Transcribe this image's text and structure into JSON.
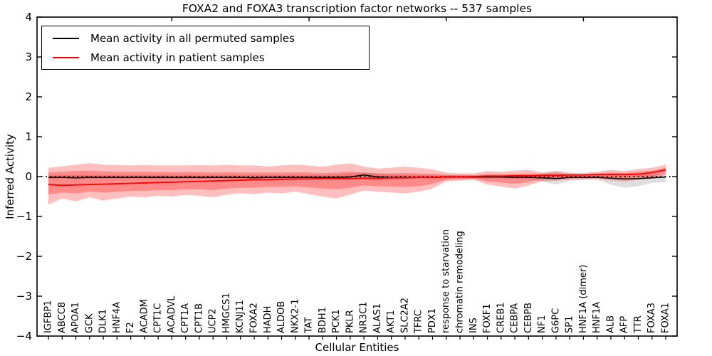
{
  "chart_data": {
    "type": "line",
    "title": "FOXA2 and FOXA3 transcription factor networks -- 537 samples",
    "xlabel": "Cellular Entities",
    "ylabel": "Inferred Activity",
    "ylim": [
      -4,
      4
    ],
    "yticks": [
      4,
      3,
      2,
      1,
      0,
      -1,
      -2,
      -3,
      -4
    ],
    "grid": false,
    "legend_position": "upper left",
    "zero_reference_line": {
      "y": 0,
      "style": "dotted",
      "color": "#000000"
    },
    "categories": [
      "IGFBP1",
      "ABCC8",
      "APOA1",
      "GCK",
      "DLK1",
      "HNF4A",
      "F2",
      "ACADM",
      "CPT1C",
      "ACADVL",
      "CPT1A",
      "CPT1B",
      "UCP2",
      "HMGCS1",
      "KCNJ11",
      "FOXA2",
      "HADH",
      "ALDOB",
      "NKX2-1",
      "TAT",
      "BDH1",
      "PCK1",
      "PKLR",
      "NR3C1",
      "ALAS1",
      "AKT1",
      "SLC2A2",
      "TFRC",
      "PDX1",
      "response to starvation",
      "chromatin remodeling",
      "INS",
      "FOXF1",
      "CREB1",
      "CEBPA",
      "CEBPB",
      "NF1",
      "G6PC",
      "SP1",
      "HNF1A (dimer)",
      "HNF1A",
      "ALB",
      "AFP",
      "TTR",
      "FOXA3",
      "FOXA1"
    ],
    "series": [
      {
        "name": "Mean activity in all permuted samples",
        "color": "#000000",
        "values": [
          -0.02,
          -0.02,
          -0.03,
          -0.02,
          -0.02,
          -0.02,
          -0.02,
          -0.02,
          -0.02,
          -0.02,
          -0.02,
          -0.02,
          -0.02,
          -0.02,
          -0.02,
          -0.03,
          -0.02,
          -0.02,
          -0.02,
          -0.02,
          -0.02,
          -0.02,
          -0.01,
          0.04,
          -0.01,
          -0.02,
          -0.02,
          -0.02,
          -0.02,
          -0.01,
          -0.01,
          -0.01,
          -0.01,
          -0.01,
          -0.02,
          -0.02,
          -0.03,
          -0.05,
          -0.02,
          -0.02,
          -0.02,
          -0.04,
          -0.06,
          -0.05,
          -0.03,
          -0.01
        ]
      },
      {
        "name": "Mean activity in patient samples",
        "color": "#ff0000",
        "values": [
          -0.2,
          -0.22,
          -0.21,
          -0.2,
          -0.19,
          -0.18,
          -0.17,
          -0.16,
          -0.15,
          -0.14,
          -0.13,
          -0.12,
          -0.11,
          -0.1,
          -0.09,
          -0.08,
          -0.08,
          -0.07,
          -0.06,
          -0.06,
          -0.05,
          -0.05,
          -0.05,
          -0.04,
          -0.04,
          -0.03,
          -0.03,
          -0.02,
          -0.02,
          -0.01,
          -0.01,
          0.0,
          0.01,
          0.01,
          0.02,
          0.02,
          0.03,
          0.03,
          0.04,
          0.04,
          0.05,
          0.05,
          0.05,
          0.06,
          0.1,
          0.17
        ]
      }
    ],
    "bands": [
      {
        "name": "permuted-samples-range",
        "color": "#000000",
        "opacity": 0.13,
        "low": [
          -0.06,
          -0.06,
          -0.07,
          -0.06,
          -0.06,
          -0.06,
          -0.06,
          -0.06,
          -0.06,
          -0.06,
          -0.06,
          -0.06,
          -0.06,
          -0.06,
          -0.06,
          -0.07,
          -0.06,
          -0.06,
          -0.06,
          -0.06,
          -0.06,
          -0.07,
          -0.08,
          -0.08,
          -0.1,
          -0.08,
          -0.06,
          -0.06,
          -0.06,
          -0.05,
          -0.04,
          -0.04,
          -0.05,
          -0.05,
          -0.06,
          -0.06,
          -0.12,
          -0.2,
          -0.1,
          -0.07,
          -0.08,
          -0.2,
          -0.28,
          -0.24,
          -0.16,
          -0.14
        ],
        "high": [
          0.04,
          0.04,
          0.04,
          0.04,
          0.04,
          0.04,
          0.04,
          0.04,
          0.04,
          0.04,
          0.04,
          0.04,
          0.04,
          0.04,
          0.04,
          0.04,
          0.04,
          0.04,
          0.04,
          0.04,
          0.04,
          0.05,
          0.08,
          0.1,
          0.08,
          0.05,
          0.04,
          0.04,
          0.04,
          0.03,
          0.03,
          0.03,
          0.04,
          0.04,
          0.04,
          0.04,
          0.08,
          0.12,
          0.06,
          0.05,
          0.06,
          0.08,
          0.08,
          0.08,
          0.06,
          0.06
        ]
      },
      {
        "name": "patient-samples-range-outer",
        "color": "#ff0000",
        "opacity": 0.25,
        "low": [
          -0.7,
          -0.55,
          -0.62,
          -0.52,
          -0.6,
          -0.55,
          -0.5,
          -0.52,
          -0.48,
          -0.5,
          -0.46,
          -0.48,
          -0.52,
          -0.45,
          -0.42,
          -0.44,
          -0.4,
          -0.42,
          -0.38,
          -0.44,
          -0.5,
          -0.55,
          -0.45,
          -0.35,
          -0.38,
          -0.4,
          -0.42,
          -0.38,
          -0.3,
          -0.12,
          -0.1,
          -0.08,
          -0.2,
          -0.25,
          -0.3,
          -0.22,
          -0.12,
          -0.1,
          -0.08,
          -0.08,
          -0.06,
          -0.1,
          -0.12,
          -0.08,
          -0.05,
          0.04
        ],
        "high": [
          0.22,
          0.26,
          0.3,
          0.34,
          0.3,
          0.29,
          0.28,
          0.29,
          0.28,
          0.28,
          0.28,
          0.29,
          0.28,
          0.29,
          0.28,
          0.28,
          0.26,
          0.28,
          0.3,
          0.28,
          0.25,
          0.3,
          0.33,
          0.25,
          0.2,
          0.22,
          0.25,
          0.22,
          0.18,
          0.1,
          0.08,
          0.08,
          0.14,
          0.12,
          0.15,
          0.17,
          0.1,
          0.14,
          0.1,
          0.09,
          0.12,
          0.17,
          0.14,
          0.19,
          0.22,
          0.3
        ]
      },
      {
        "name": "patient-samples-range-inner",
        "color": "#ff0000",
        "opacity": 0.28,
        "low": [
          -0.45,
          -0.4,
          -0.42,
          -0.38,
          -0.4,
          -0.38,
          -0.36,
          -0.36,
          -0.34,
          -0.34,
          -0.32,
          -0.32,
          -0.34,
          -0.3,
          -0.28,
          -0.28,
          -0.26,
          -0.26,
          -0.25,
          -0.27,
          -0.3,
          -0.32,
          -0.28,
          -0.22,
          -0.24,
          -0.25,
          -0.26,
          -0.24,
          -0.18,
          -0.08,
          -0.06,
          -0.05,
          -0.12,
          -0.15,
          -0.18,
          -0.13,
          -0.07,
          -0.05,
          -0.04,
          -0.03,
          -0.02,
          -0.04,
          -0.05,
          -0.02,
          0.0,
          0.08
        ],
        "high": [
          0.1,
          0.12,
          0.14,
          0.15,
          0.13,
          0.12,
          0.12,
          0.12,
          0.11,
          0.11,
          0.11,
          0.11,
          0.1,
          0.11,
          0.1,
          0.1,
          0.1,
          0.1,
          0.11,
          0.1,
          0.09,
          0.1,
          0.12,
          0.1,
          0.08,
          0.08,
          0.09,
          0.08,
          0.07,
          0.05,
          0.04,
          0.04,
          0.06,
          0.06,
          0.07,
          0.08,
          0.06,
          0.08,
          0.06,
          0.06,
          0.08,
          0.1,
          0.09,
          0.12,
          0.15,
          0.22
        ]
      }
    ]
  }
}
